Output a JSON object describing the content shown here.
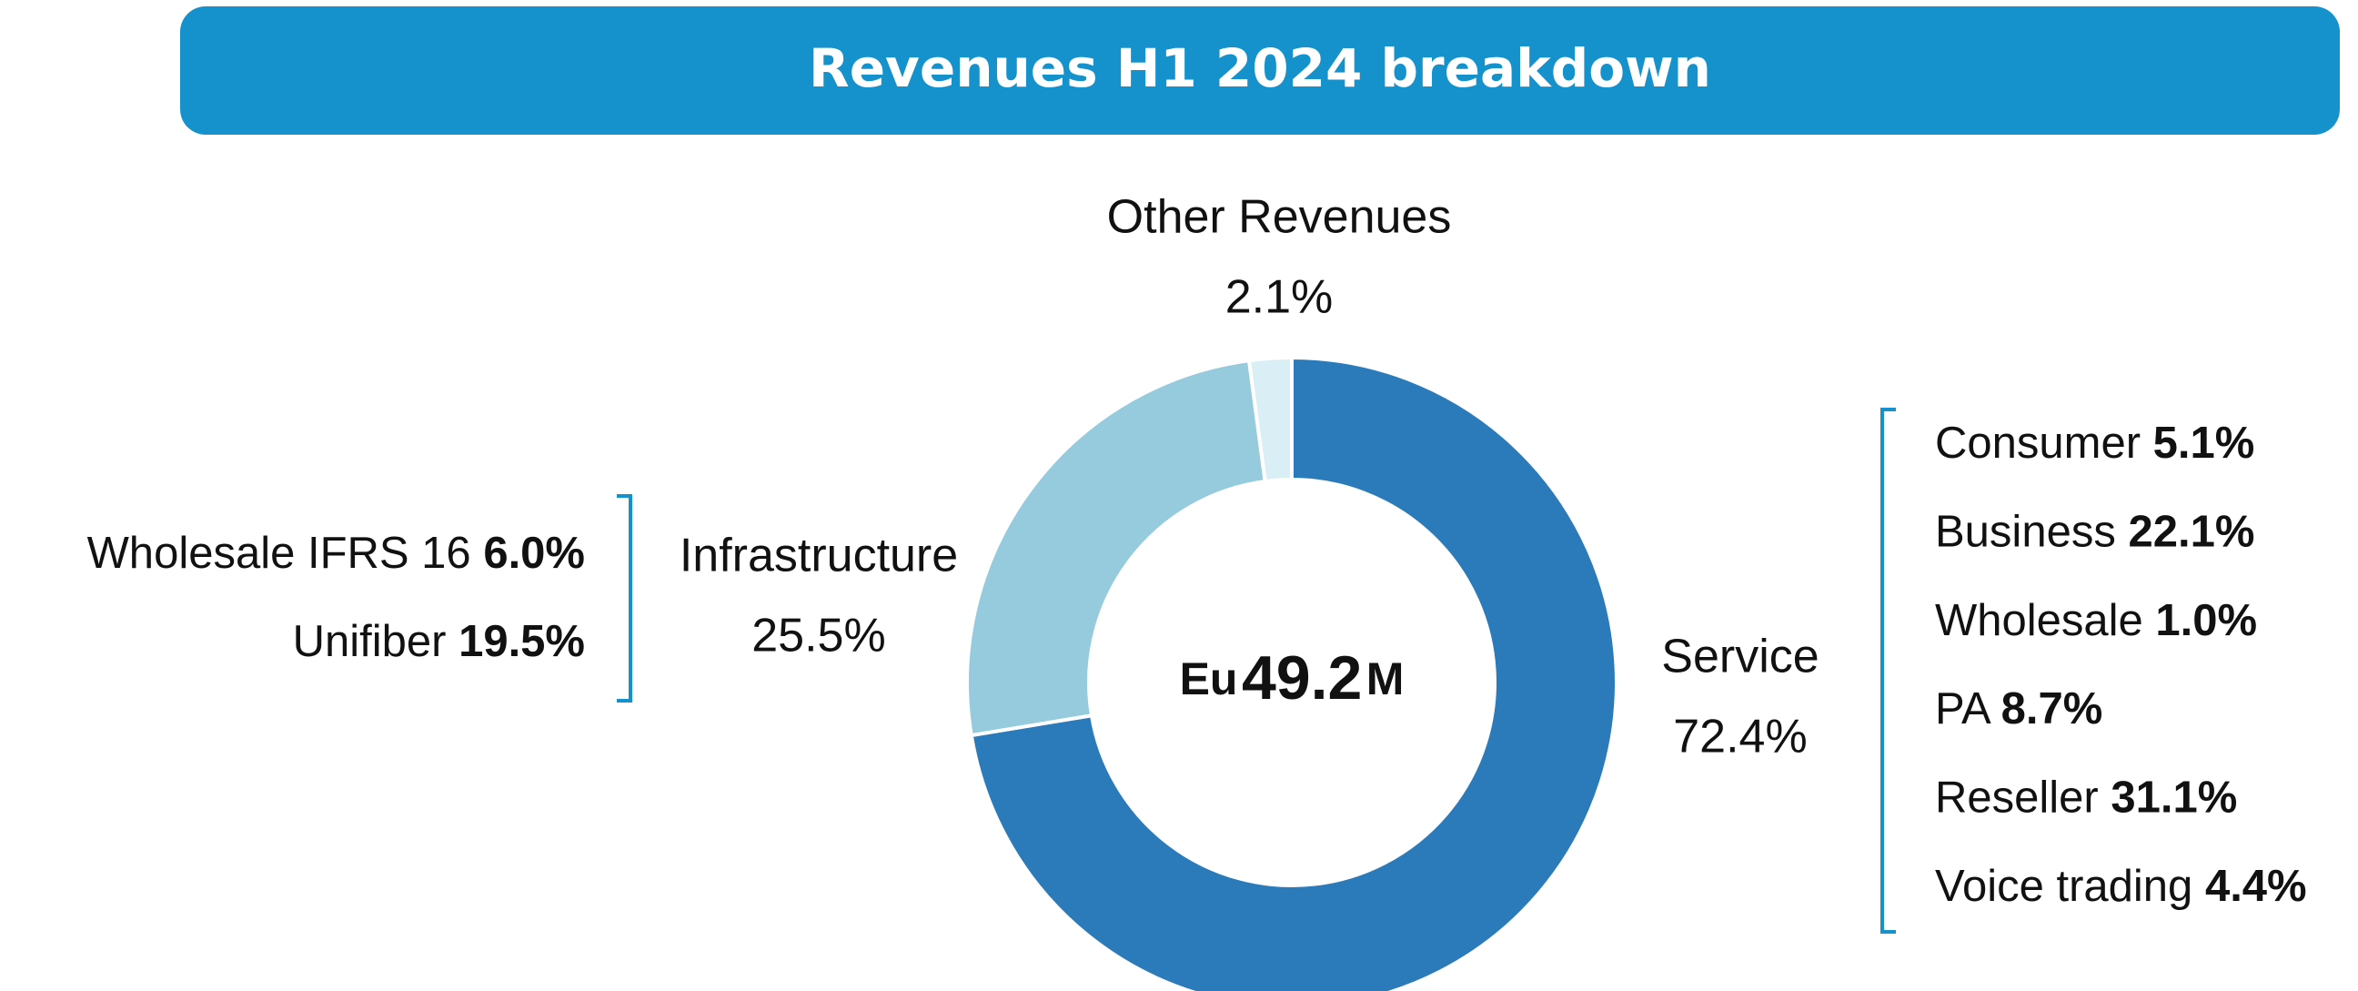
{
  "chart_data": {
    "type": "pie",
    "title": "Revenues H1 2024 breakdown",
    "categories": [
      "Service",
      "Infrastructure",
      "Other Revenues"
    ],
    "values": [
      72.4,
      25.5,
      2.1
    ],
    "value_labels": [
      "72.4%",
      "25.5%",
      "2.1%"
    ],
    "colors": [
      "#2b7bbb",
      "#96cbdd",
      "#d9eef5"
    ],
    "center_label": {
      "prefix": "Eu",
      "value": 49.2,
      "suffix": "M"
    },
    "infrastructure_breakdown": [
      {
        "name": "Wholesale IFRS 16",
        "share": "6.0%"
      },
      {
        "name": "Unifiber",
        "share": "19.5%"
      }
    ],
    "service_breakdown": [
      {
        "name": "Consumer",
        "share": "5.1%"
      },
      {
        "name": "Business",
        "share": "22.1%"
      },
      {
        "name": "Wholesale",
        "share": "1.0%"
      },
      {
        "name": "PA",
        "share": "8.7%"
      },
      {
        "name": "Reseller",
        "share": "31.1%"
      },
      {
        "name": "Voice trading",
        "share": "4.4%"
      }
    ]
  }
}
